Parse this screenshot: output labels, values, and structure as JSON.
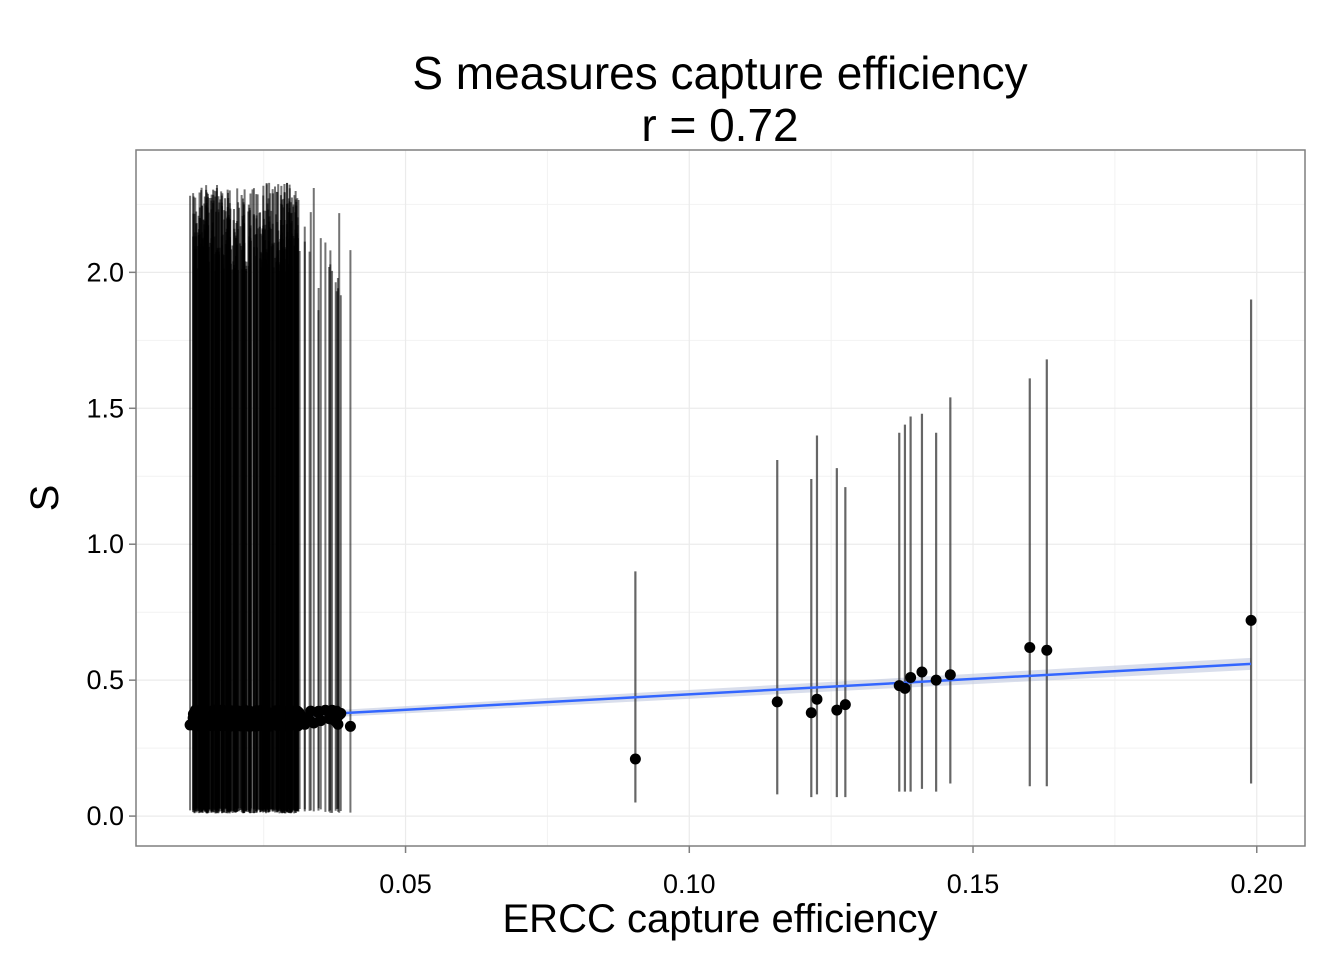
{
  "chart_data": {
    "type": "scatter",
    "title": "S measures capture efficiency",
    "subtitle": "r = 0.72",
    "xlabel": "ERCC capture efficiency",
    "ylabel": "S",
    "xlim": [
      0.0025,
      0.2085
    ],
    "ylim": [
      -0.11,
      2.45
    ],
    "xticks": [
      "0.05",
      "0.10",
      "0.15",
      "0.20"
    ],
    "xtick_values": [
      0.05,
      0.1,
      0.15,
      0.2
    ],
    "yticks": [
      "0.0",
      "0.5",
      "1.0",
      "1.5",
      "2.0"
    ],
    "ytick_values": [
      0.0,
      0.5,
      1.0,
      1.5,
      2.0
    ],
    "grid": true,
    "legend": "none",
    "colors": {
      "points": "#000000",
      "error_bars": "#333333",
      "fit_line": "#3366FF",
      "fit_band": "#BFC8E0",
      "grid": "#EBEBEB",
      "panel_border": "#7F7F7F"
    },
    "fit_line": {
      "x": [
        0.012,
        0.199
      ],
      "y": [
        0.348,
        0.56
      ]
    },
    "points": [
      {
        "x": 0.0905,
        "y": 0.21,
        "lo": 0.05,
        "hi": 0.9
      },
      {
        "x": 0.1155,
        "y": 0.42,
        "lo": 0.08,
        "hi": 1.31
      },
      {
        "x": 0.1215,
        "y": 0.38,
        "lo": 0.07,
        "hi": 1.24
      },
      {
        "x": 0.1225,
        "y": 0.43,
        "lo": 0.08,
        "hi": 1.4
      },
      {
        "x": 0.126,
        "y": 0.39,
        "lo": 0.07,
        "hi": 1.28
      },
      {
        "x": 0.1275,
        "y": 0.41,
        "lo": 0.07,
        "hi": 1.21
      },
      {
        "x": 0.137,
        "y": 0.48,
        "lo": 0.09,
        "hi": 1.41
      },
      {
        "x": 0.138,
        "y": 0.47,
        "lo": 0.09,
        "hi": 1.44
      },
      {
        "x": 0.139,
        "y": 0.51,
        "lo": 0.09,
        "hi": 1.47
      },
      {
        "x": 0.141,
        "y": 0.53,
        "lo": 0.1,
        "hi": 1.48
      },
      {
        "x": 0.1435,
        "y": 0.5,
        "lo": 0.09,
        "hi": 1.41
      },
      {
        "x": 0.146,
        "y": 0.52,
        "lo": 0.12,
        "hi": 1.54
      },
      {
        "x": 0.16,
        "y": 0.62,
        "lo": 0.11,
        "hi": 1.61
      },
      {
        "x": 0.163,
        "y": 0.61,
        "lo": 0.11,
        "hi": 1.68
      },
      {
        "x": 0.199,
        "y": 0.72,
        "lo": 0.12,
        "hi": 1.9
      }
    ],
    "dense_cluster": {
      "x_range": [
        0.0115,
        0.0415
      ],
      "y_range": [
        0.33,
        0.39
      ],
      "lo_range": [
        0.01,
        0.03
      ],
      "hi_range": [
        1.6,
        2.33
      ],
      "count": 420
    }
  }
}
